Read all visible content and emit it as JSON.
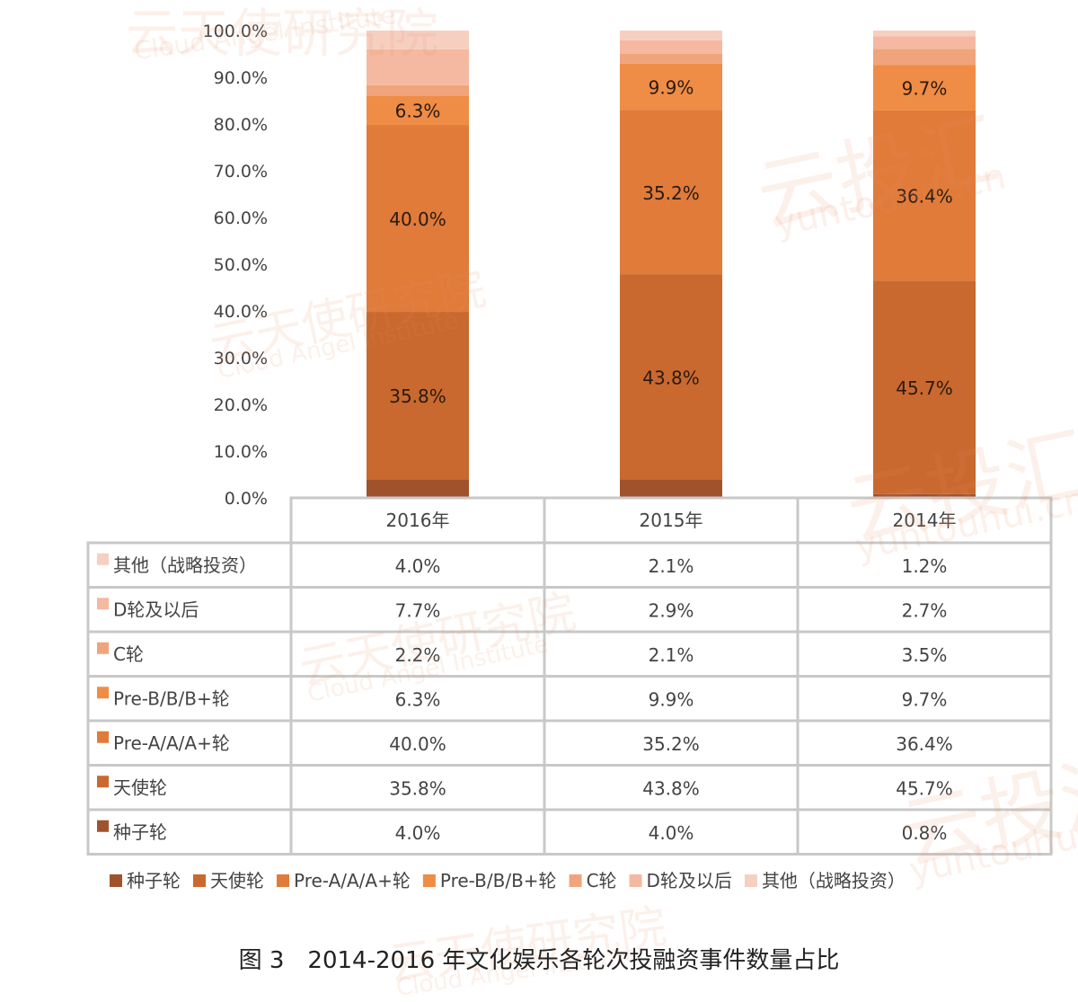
{
  "chart_data": {
    "type": "bar",
    "stacked": true,
    "percent": true,
    "categories": [
      "2016年",
      "2015年",
      "2014年"
    ],
    "y_ticks": [
      "0.0%",
      "10.0%",
      "20.0%",
      "30.0%",
      "40.0%",
      "50.0%",
      "60.0%",
      "70.0%",
      "80.0%",
      "90.0%",
      "100.0%"
    ],
    "ylim": [
      0,
      100
    ],
    "series": [
      {
        "name": "种子轮",
        "color": "#a0522d",
        "values": [
          4.0,
          4.0,
          0.8
        ],
        "labels": [
          "4.0%",
          "4.0%",
          "0.8%"
        ]
      },
      {
        "name": "天使轮",
        "color": "#c9692f",
        "values": [
          35.8,
          43.8,
          45.7
        ],
        "labels": [
          "35.8%",
          "43.8%",
          "45.7%"
        ]
      },
      {
        "name": "Pre-A/A/A+轮",
        "color": "#e07b3a",
        "values": [
          40.0,
          35.2,
          36.4
        ],
        "labels": [
          "40.0%",
          "35.2%",
          "36.4%"
        ]
      },
      {
        "name": "Pre-B/B/B+轮",
        "color": "#ef8c45",
        "values": [
          6.3,
          9.9,
          9.7
        ],
        "labels": [
          "6.3%",
          "9.9%",
          "9.7%"
        ]
      },
      {
        "name": "C轮",
        "color": "#f0a47c",
        "values": [
          2.2,
          2.1,
          3.5
        ],
        "labels": [
          "2.2%",
          "2.1%",
          "3.5%"
        ]
      },
      {
        "name": "D轮及以后",
        "color": "#f4b9a0",
        "values": [
          7.7,
          2.9,
          2.7
        ],
        "labels": [
          "7.7%",
          "2.9%",
          "2.7%"
        ]
      },
      {
        "name": "其他（战略投资）",
        "color": "#f7cfc0",
        "values": [
          4.0,
          2.1,
          1.2
        ],
        "labels": [
          "4.0%",
          "2.1%",
          "1.2%"
        ]
      }
    ],
    "bar_labeled_series": [
      1,
      2,
      3
    ],
    "table_row_order": [
      6,
      5,
      4,
      3,
      2,
      1,
      0
    ],
    "legend_position": "bottom",
    "grid": false
  },
  "caption": "图 3　2014-2016 年文化娱乐各轮次投融资事件数量占比",
  "watermarks": {
    "yuntouhui_cn": "云投汇",
    "yuntouhui_en": "yuntouhui.cn",
    "institute_cn": "云天使研究院",
    "institute_en": "Cloud Angel Institute"
  }
}
